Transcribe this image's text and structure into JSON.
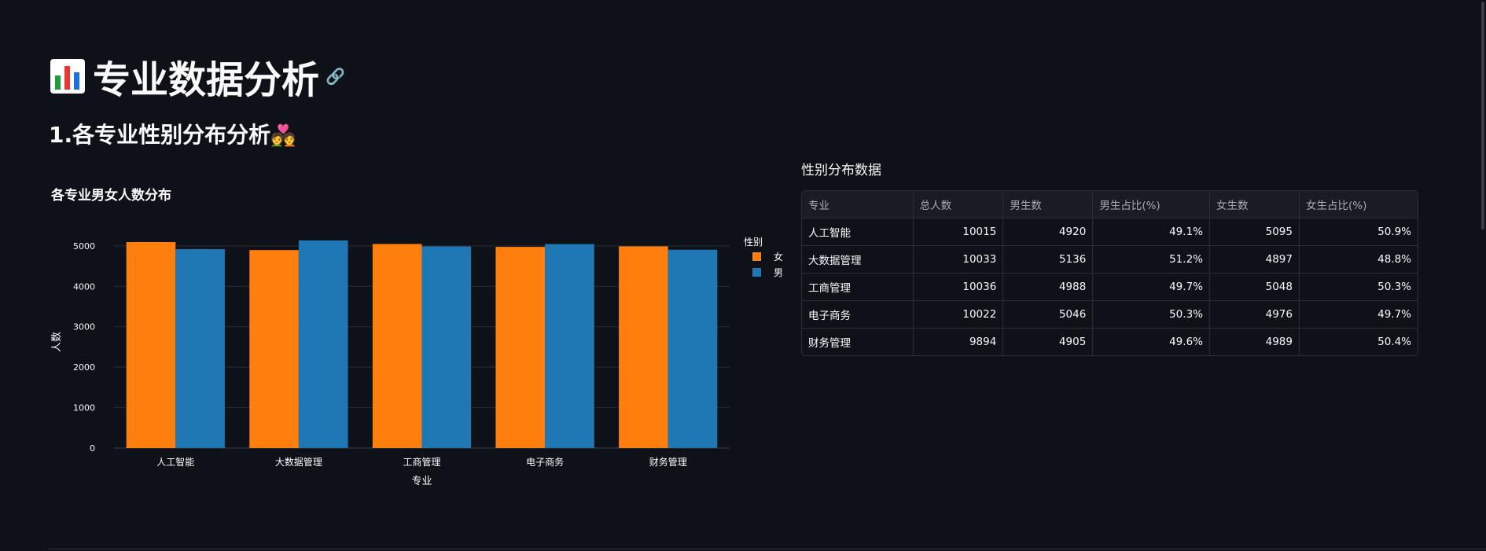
{
  "page": {
    "title": "专业数据分析",
    "title_icon": "bar-chart-emoji-icon",
    "link_icon": "link-icon",
    "section_title": "1.各专业性别分布分析",
    "section_icon": "couple-heart-emoji-icon"
  },
  "chart_title": "各专业男女人数分布",
  "chart_data": {
    "type": "bar",
    "categories": [
      "人工智能",
      "大数据管理",
      "工商管理",
      "电子商务",
      "财务管理"
    ],
    "series": [
      {
        "name": "女",
        "values": [
          5095,
          4897,
          5048,
          4976,
          4989
        ],
        "color": "#ff7f0e"
      },
      {
        "name": "男",
        "values": [
          4920,
          5136,
          4988,
          5046,
          4905
        ],
        "color": "#1f77b4"
      }
    ],
    "xlabel": "专业",
    "ylabel": "人数",
    "ylim": [
      0,
      5250
    ],
    "yticks": [
      0,
      1000,
      2000,
      3000,
      4000,
      5000
    ],
    "legend_title": "性别",
    "legend_position": "top-right",
    "grid": true
  },
  "table": {
    "caption": "性别分布数据",
    "columns": [
      "专业",
      "总人数",
      "男生数",
      "男生占比(%)",
      "女生数",
      "女生占比(%)"
    ],
    "rows": [
      [
        "人工智能",
        "10015",
        "4920",
        "49.1%",
        "5095",
        "50.9%"
      ],
      [
        "大数据管理",
        "10033",
        "5136",
        "51.2%",
        "4897",
        "48.8%"
      ],
      [
        "工商管理",
        "10036",
        "4988",
        "49.7%",
        "5048",
        "50.3%"
      ],
      [
        "电子商务",
        "10022",
        "5046",
        "50.3%",
        "4976",
        "49.7%"
      ],
      [
        "财务管理",
        "9894",
        "4905",
        "49.6%",
        "4989",
        "50.4%"
      ]
    ]
  },
  "colors": {
    "background": "#0e1117",
    "text": "#fafafa",
    "female": "#ff7f0e",
    "male": "#1f77b4"
  }
}
